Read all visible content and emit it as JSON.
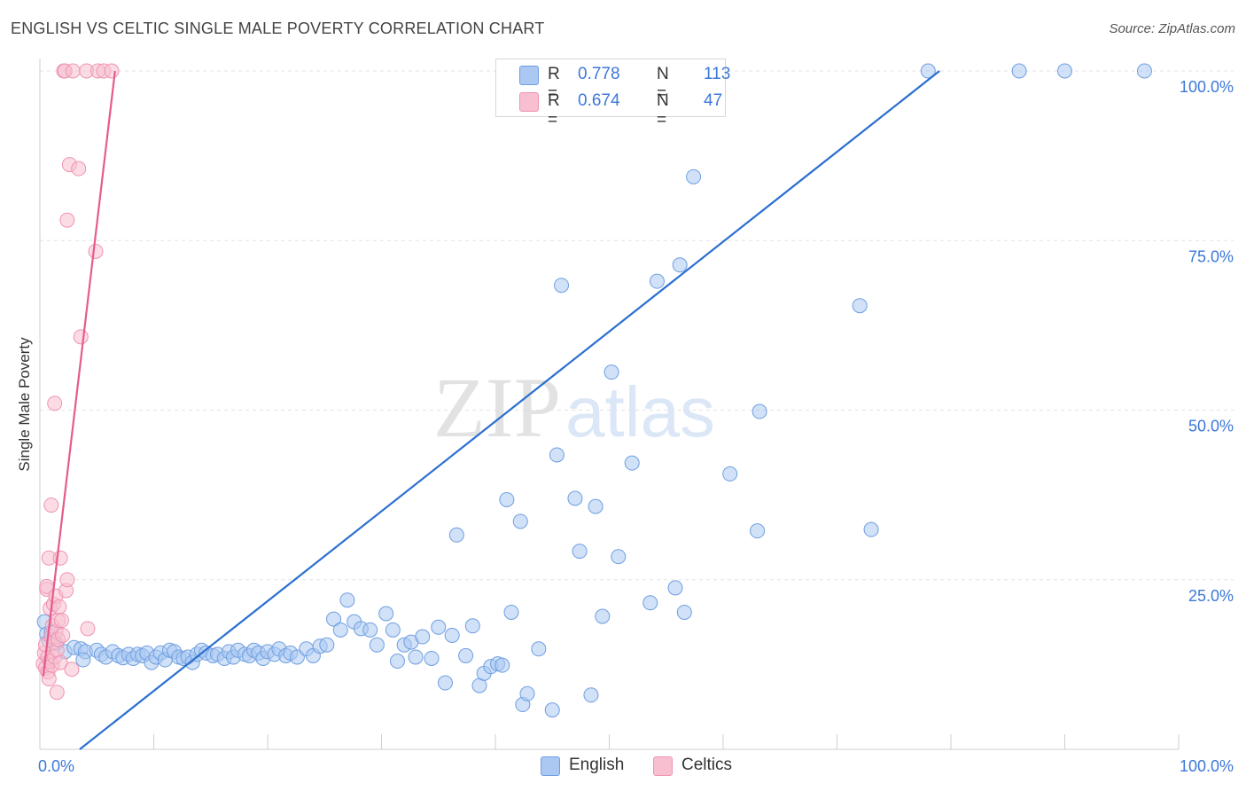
{
  "title": "ENGLISH VS CELTIC SINGLE MALE POVERTY CORRELATION CHART",
  "source": "Source: ZipAtlas.com",
  "watermark": {
    "part1": "ZIP",
    "part2": "atlas"
  },
  "legend": {
    "rows": [
      {
        "r_label": "R =",
        "r_value": "0.778",
        "n_label": "N =",
        "n_value": "113"
      },
      {
        "r_label": "R =",
        "r_value": "0.674",
        "n_label": "N =",
        "n_value": "47"
      }
    ]
  },
  "bottom_legend": [
    "English",
    "Celtics"
  ],
  "colors": {
    "english_fill": "#aac8f2",
    "english_stroke": "#6f9fe0",
    "english_line": "#2a6fd1",
    "celtics_fill": "#f8bfd0",
    "celtics_stroke": "#ee94b0",
    "celtics_line": "#e65b8c",
    "axis_tick_text": "#3c78d8",
    "grid": "#e3e3e3"
  },
  "chart_data": {
    "type": "scatter",
    "title": "ENGLISH VS CELTIC SINGLE MALE POVERTY CORRELATION CHART",
    "xlabel": "",
    "ylabel": "Single Male Poverty",
    "xlim": [
      0,
      100
    ],
    "ylim": [
      0,
      100
    ],
    "x_tick_labels": [
      "0.0%",
      "100.0%"
    ],
    "y_tick_labels": [
      "25.0%",
      "50.0%",
      "75.0%",
      "100.0%"
    ],
    "y_ticks": [
      25,
      50,
      75,
      100
    ],
    "grid": true,
    "legend_position": "top-center",
    "series": [
      {
        "name": "English",
        "r": 0.778,
        "n": 113,
        "trend": {
          "x": [
            3.5,
            79
          ],
          "y": [
            0,
            100
          ]
        },
        "points": [
          [
            0.4,
            18.8
          ],
          [
            0.6,
            17.0
          ],
          [
            0.8,
            16.0
          ],
          [
            1.0,
            17.2
          ],
          [
            1.4,
            15.6
          ],
          [
            2.2,
            14.4
          ],
          [
            3.0,
            15.0
          ],
          [
            3.6,
            14.8
          ],
          [
            4.0,
            14.4
          ],
          [
            3.8,
            13.2
          ],
          [
            5.0,
            14.6
          ],
          [
            5.4,
            14.0
          ],
          [
            5.8,
            13.6
          ],
          [
            6.4,
            14.4
          ],
          [
            6.9,
            13.8
          ],
          [
            7.3,
            13.5
          ],
          [
            7.8,
            14.0
          ],
          [
            8.2,
            13.4
          ],
          [
            8.6,
            14.0
          ],
          [
            9.0,
            13.8
          ],
          [
            9.4,
            14.2
          ],
          [
            9.8,
            12.8
          ],
          [
            10.2,
            13.6
          ],
          [
            10.6,
            14.2
          ],
          [
            11.0,
            13.2
          ],
          [
            11.4,
            14.6
          ],
          [
            11.8,
            14.4
          ],
          [
            12.2,
            13.6
          ],
          [
            12.6,
            13.4
          ],
          [
            13.0,
            13.6
          ],
          [
            13.4,
            12.8
          ],
          [
            13.8,
            14.0
          ],
          [
            14.2,
            14.6
          ],
          [
            14.6,
            14.2
          ],
          [
            15.2,
            13.8
          ],
          [
            15.6,
            14.0
          ],
          [
            16.2,
            13.4
          ],
          [
            16.6,
            14.4
          ],
          [
            17.0,
            13.6
          ],
          [
            17.4,
            14.6
          ],
          [
            18.0,
            14.0
          ],
          [
            18.4,
            13.8
          ],
          [
            18.8,
            14.6
          ],
          [
            19.2,
            14.2
          ],
          [
            19.6,
            13.4
          ],
          [
            20.0,
            14.4
          ],
          [
            20.6,
            14.0
          ],
          [
            21.0,
            14.8
          ],
          [
            21.6,
            13.8
          ],
          [
            22.0,
            14.2
          ],
          [
            22.6,
            13.6
          ],
          [
            23.4,
            14.8
          ],
          [
            24.0,
            13.8
          ],
          [
            24.6,
            15.2
          ],
          [
            25.2,
            15.4
          ],
          [
            25.8,
            19.2
          ],
          [
            26.4,
            17.6
          ],
          [
            27.0,
            22.0
          ],
          [
            27.6,
            18.8
          ],
          [
            28.2,
            17.8
          ],
          [
            29.0,
            17.6
          ],
          [
            29.6,
            15.4
          ],
          [
            30.4,
            20.0
          ],
          [
            31.0,
            17.6
          ],
          [
            31.4,
            13.0
          ],
          [
            32.0,
            15.4
          ],
          [
            32.6,
            15.8
          ],
          [
            33.0,
            13.6
          ],
          [
            33.6,
            16.6
          ],
          [
            34.4,
            13.4
          ],
          [
            35.0,
            18.0
          ],
          [
            35.6,
            9.8
          ],
          [
            36.2,
            16.8
          ],
          [
            36.6,
            31.6
          ],
          [
            37.4,
            13.8
          ],
          [
            38.0,
            18.2
          ],
          [
            38.6,
            9.4
          ],
          [
            39.0,
            11.2
          ],
          [
            39.6,
            12.2
          ],
          [
            40.2,
            12.6
          ],
          [
            40.6,
            12.4
          ],
          [
            41.0,
            36.8
          ],
          [
            41.4,
            20.2
          ],
          [
            42.2,
            33.6
          ],
          [
            42.4,
            6.6
          ],
          [
            42.8,
            8.2
          ],
          [
            43.8,
            14.8
          ],
          [
            45.0,
            5.8
          ],
          [
            45.4,
            43.4
          ],
          [
            45.8,
            68.4
          ],
          [
            47.0,
            37.0
          ],
          [
            47.4,
            29.2
          ],
          [
            48.4,
            8.0
          ],
          [
            48.8,
            35.8
          ],
          [
            49.4,
            19.6
          ],
          [
            50.2,
            55.6
          ],
          [
            50.8,
            28.4
          ],
          [
            52.0,
            42.2
          ],
          [
            53.6,
            21.6
          ],
          [
            54.2,
            69.0
          ],
          [
            55.8,
            23.8
          ],
          [
            56.2,
            71.4
          ],
          [
            56.6,
            20.2
          ],
          [
            57.4,
            84.4
          ],
          [
            60.6,
            40.6
          ],
          [
            63.0,
            32.2
          ],
          [
            63.2,
            49.8
          ],
          [
            72.0,
            65.4
          ],
          [
            73.0,
            32.4
          ],
          [
            78.0,
            100.0
          ],
          [
            86.0,
            100.0
          ],
          [
            90.0,
            100.0
          ],
          [
            97.0,
            100.0
          ]
        ]
      },
      {
        "name": "Celtics",
        "r": 0.674,
        "n": 47,
        "trend": {
          "x": [
            0.3,
            6.6
          ],
          "y": [
            10.8,
            100
          ]
        },
        "points": [
          [
            0.3,
            12.6
          ],
          [
            0.4,
            14.2
          ],
          [
            0.5,
            15.4
          ],
          [
            0.5,
            12.0
          ],
          [
            0.6,
            23.6
          ],
          [
            0.6,
            24.0
          ],
          [
            0.7,
            11.4
          ],
          [
            0.7,
            13.6
          ],
          [
            0.8,
            28.2
          ],
          [
            0.8,
            10.4
          ],
          [
            0.9,
            20.8
          ],
          [
            0.9,
            13.0
          ],
          [
            1.0,
            36.0
          ],
          [
            1.0,
            16.6
          ],
          [
            1.1,
            18.2
          ],
          [
            1.1,
            12.4
          ],
          [
            1.2,
            15.8
          ],
          [
            1.2,
            21.4
          ],
          [
            1.3,
            51.0
          ],
          [
            1.3,
            13.6
          ],
          [
            1.4,
            17.4
          ],
          [
            1.4,
            22.6
          ],
          [
            1.5,
            8.4
          ],
          [
            1.5,
            14.6
          ],
          [
            1.6,
            19.0
          ],
          [
            1.6,
            16.2
          ],
          [
            1.7,
            21.0
          ],
          [
            1.8,
            28.2
          ],
          [
            1.8,
            12.8
          ],
          [
            1.9,
            19.0
          ],
          [
            2.0,
            16.8
          ],
          [
            2.1,
            100.0
          ],
          [
            2.2,
            100.0
          ],
          [
            2.3,
            23.4
          ],
          [
            2.4,
            25.0
          ],
          [
            2.4,
            78.0
          ],
          [
            2.6,
            86.2
          ],
          [
            2.8,
            11.8
          ],
          [
            2.9,
            100.0
          ],
          [
            3.4,
            85.6
          ],
          [
            3.6,
            60.8
          ],
          [
            4.1,
            100.0
          ],
          [
            4.2,
            17.8
          ],
          [
            4.9,
            73.4
          ],
          [
            5.1,
            100.0
          ],
          [
            5.6,
            100.0
          ],
          [
            6.3,
            100.0
          ]
        ]
      }
    ]
  }
}
